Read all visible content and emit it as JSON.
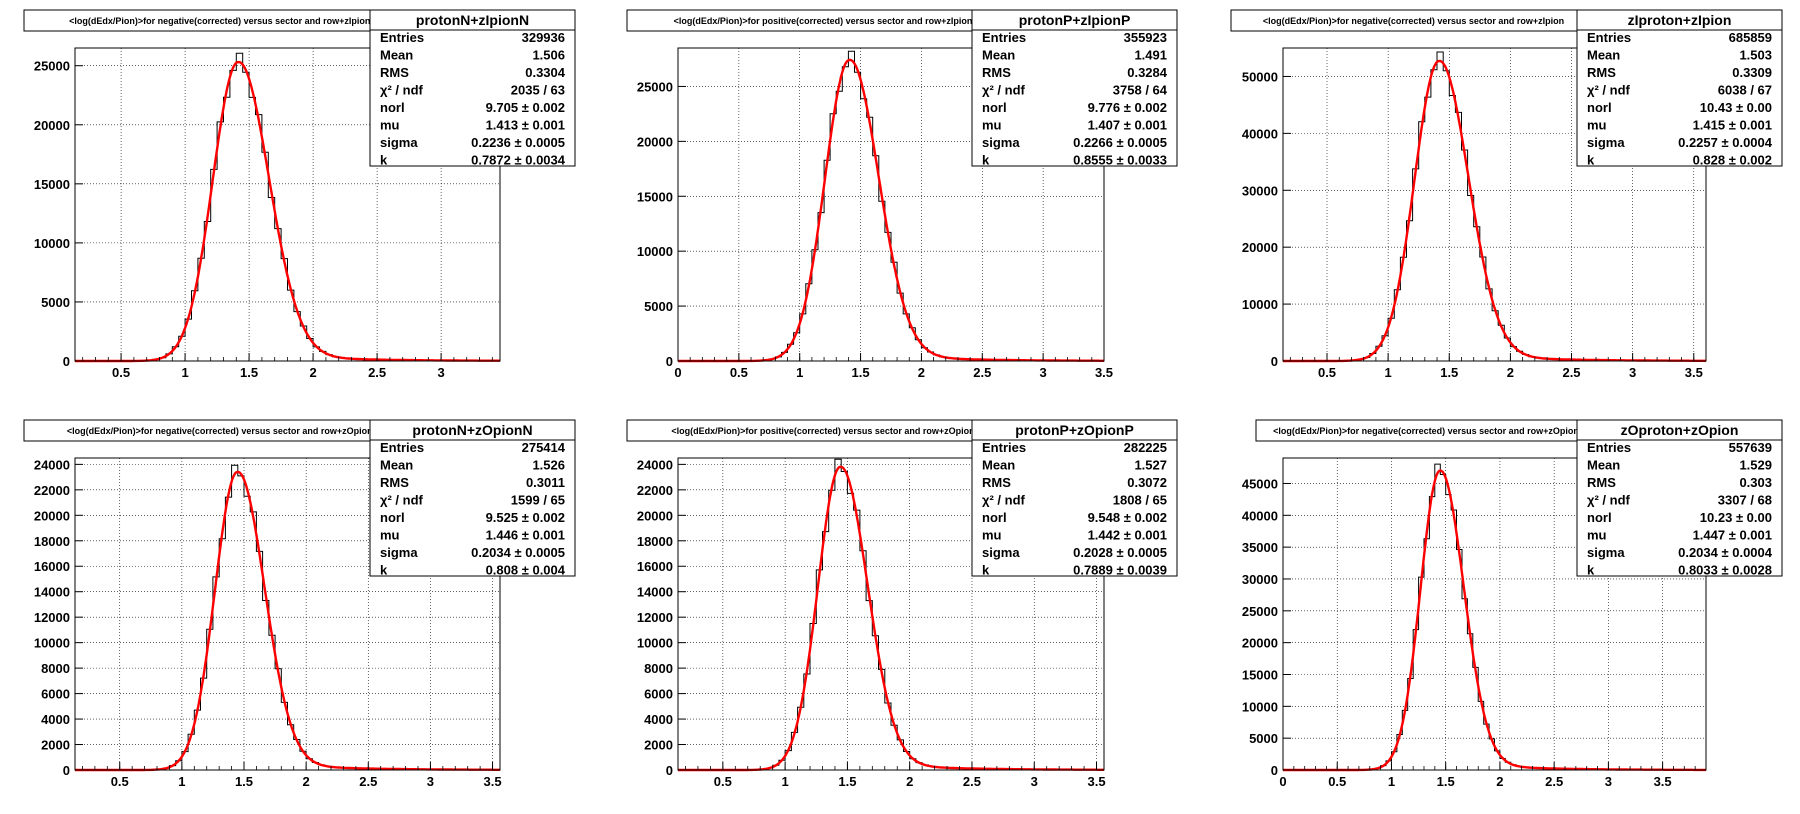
{
  "chart_data": [
    {
      "type": "histogram",
      "title": "<log(dEdx/Pion)>for negative(corrected) versus sector and row+zIpionN",
      "stats_name": "protonN+zIpionN",
      "xlim": [
        0.14,
        3.46
      ],
      "ylim": [
        0,
        26500
      ],
      "xticks": [
        0.5,
        1,
        1.5,
        2,
        2.5,
        3
      ],
      "xtick_labels": [
        "0.5",
        "1",
        "1.5",
        "2",
        "2.5",
        "3"
      ],
      "yticks": [
        0,
        5000,
        10000,
        15000,
        20000,
        25000
      ],
      "ytick_labels": [
        "0",
        "5000",
        "10000",
        "15000",
        "20000",
        "25000"
      ],
      "stats": [
        {
          "label": "Entries",
          "value": "329936"
        },
        {
          "label": "Mean",
          "value": "1.506"
        },
        {
          "label": "RMS",
          "value": "0.3304"
        },
        {
          "label": "χ² / ndf",
          "value": "2035 / 63"
        },
        {
          "label": "norl",
          "value": "9.705 ± 0.002"
        },
        {
          "label": "mu",
          "value": "1.413 ± 0.001"
        },
        {
          "label": "sigma",
          "value": "0.2236 ± 0.0005"
        },
        {
          "label": "k",
          "value": "0.7872 ± 0.0034"
        }
      ],
      "fit": {
        "peak": 25300,
        "mu": 1.413,
        "sigma": 0.2236,
        "k": 0.7872
      }
    },
    {
      "type": "histogram",
      "title": "<log(dEdx/Pion)>for positive(corrected) versus sector and row+zIpionP",
      "stats_name": "protonP+zIpionP",
      "xlim": [
        0,
        3.5
      ],
      "ylim": [
        0,
        28500
      ],
      "xticks": [
        0,
        0.5,
        1,
        1.5,
        2,
        2.5,
        3,
        3.5
      ],
      "xtick_labels": [
        "0",
        "0.5",
        "1",
        "1.5",
        "2",
        "2.5",
        "3",
        "3.5"
      ],
      "yticks": [
        0,
        5000,
        10000,
        15000,
        20000,
        25000
      ],
      "ytick_labels": [
        "0",
        "5000",
        "10000",
        "15000",
        "20000",
        "25000"
      ],
      "stats": [
        {
          "label": "Entries",
          "value": "355923"
        },
        {
          "label": "Mean",
          "value": "1.491"
        },
        {
          "label": "RMS",
          "value": "0.3284"
        },
        {
          "label": "χ² / ndf",
          "value": "3758 / 64"
        },
        {
          "label": "norl",
          "value": "9.776 ± 0.002"
        },
        {
          "label": "mu",
          "value": "1.407 ± 0.001"
        },
        {
          "label": "sigma",
          "value": "0.2266 ± 0.0005"
        },
        {
          "label": "k",
          "value": "0.8555 ± 0.0033"
        }
      ],
      "fit": {
        "peak": 27400,
        "mu": 1.407,
        "sigma": 0.2266,
        "k": 0.8555
      }
    },
    {
      "type": "histogram",
      "title": "<log(dEdx/Pion)>for negative(corrected) versus sector and row+zIpion",
      "stats_name": "zIproton+zIpion",
      "xlim": [
        0.14,
        3.6
      ],
      "ylim": [
        0,
        55000
      ],
      "xticks": [
        0.5,
        1,
        1.5,
        2,
        2.5,
        3,
        3.5
      ],
      "xtick_labels": [
        "0.5",
        "1",
        "1.5",
        "2",
        "2.5",
        "3",
        "3.5"
      ],
      "yticks": [
        0,
        10000,
        20000,
        30000,
        40000,
        50000
      ],
      "ytick_labels": [
        "0",
        "10000",
        "20000",
        "30000",
        "40000",
        "50000"
      ],
      "stats": [
        {
          "label": "Entries",
          "value": "685859"
        },
        {
          "label": "Mean",
          "value": "1.503"
        },
        {
          "label": "RMS",
          "value": "0.3309"
        },
        {
          "label": "χ² / ndf",
          "value": "6038 / 67"
        },
        {
          "label": "norl",
          "value": "10.43 ± 0.00"
        },
        {
          "label": "mu",
          "value": "1.415 ± 0.001"
        },
        {
          "label": "sigma",
          "value": "0.2257 ± 0.0004"
        },
        {
          "label": "k",
          "value": "0.828 ± 0.002"
        }
      ],
      "fit": {
        "peak": 52700,
        "mu": 1.415,
        "sigma": 0.2257,
        "k": 0.828
      }
    },
    {
      "type": "histogram",
      "title": "<log(dEdx/Pion)>for negative(corrected) versus sector and row+zOpionN",
      "stats_name": "protonN+zOpionN",
      "xlim": [
        0.14,
        3.56
      ],
      "ylim": [
        0,
        24500
      ],
      "xticks": [
        0.5,
        1,
        1.5,
        2,
        2.5,
        3,
        3.5
      ],
      "xtick_labels": [
        "0.5",
        "1",
        "1.5",
        "2",
        "2.5",
        "3",
        "3.5"
      ],
      "yticks": [
        0,
        2000,
        4000,
        6000,
        8000,
        10000,
        12000,
        14000,
        16000,
        18000,
        20000,
        22000,
        24000
      ],
      "ytick_labels": [
        "0",
        "2000",
        "4000",
        "6000",
        "8000",
        "10000",
        "12000",
        "14000",
        "16000",
        "18000",
        "20000",
        "22000",
        "24000"
      ],
      "stats": [
        {
          "label": "Entries",
          "value": "275414"
        },
        {
          "label": "Mean",
          "value": "1.526"
        },
        {
          "label": "RMS",
          "value": "0.3011"
        },
        {
          "label": "χ² / ndf",
          "value": "1599 / 65"
        },
        {
          "label": "norl",
          "value": "9.525 ± 0.002"
        },
        {
          "label": "mu",
          "value": "1.446 ± 0.001"
        },
        {
          "label": "sigma",
          "value": "0.2034 ± 0.0005"
        },
        {
          "label": "k",
          "value": "0.808 ± 0.004"
        }
      ],
      "fit": {
        "peak": 23400,
        "mu": 1.446,
        "sigma": 0.2034,
        "k": 0.808
      }
    },
    {
      "type": "histogram",
      "title": "<log(dEdx/Pion)>for positive(corrected) versus sector and row+zOpionP",
      "stats_name": "protonP+zOpionP",
      "xlim": [
        0.14,
        3.56
      ],
      "ylim": [
        0,
        24500
      ],
      "xticks": [
        0.5,
        1,
        1.5,
        2,
        2.5,
        3,
        3.5
      ],
      "xtick_labels": [
        "0.5",
        "1",
        "1.5",
        "2",
        "2.5",
        "3",
        "3.5"
      ],
      "yticks": [
        0,
        2000,
        4000,
        6000,
        8000,
        10000,
        12000,
        14000,
        16000,
        18000,
        20000,
        22000,
        24000
      ],
      "ytick_labels": [
        "0",
        "2000",
        "4000",
        "6000",
        "8000",
        "10000",
        "12000",
        "14000",
        "16000",
        "18000",
        "20000",
        "22000",
        "24000"
      ],
      "stats": [
        {
          "label": "Entries",
          "value": "282225"
        },
        {
          "label": "Mean",
          "value": "1.527"
        },
        {
          "label": "RMS",
          "value": "0.3072"
        },
        {
          "label": "χ² / ndf",
          "value": "1808 / 65"
        },
        {
          "label": "norl",
          "value": "9.548 ± 0.002"
        },
        {
          "label": "mu",
          "value": "1.442 ± 0.001"
        },
        {
          "label": "sigma",
          "value": "0.2028 ± 0.0005"
        },
        {
          "label": "k",
          "value": "0.7889 ± 0.0039"
        }
      ],
      "fit": {
        "peak": 23800,
        "mu": 1.442,
        "sigma": 0.2028,
        "k": 0.7889
      }
    },
    {
      "type": "histogram",
      "title": "<log(dEdx/Pion)>for negative(corrected) versus sector and row+zOpion",
      "stats_name": "zOproton+zOpion",
      "xlim": [
        0,
        3.9
      ],
      "ylim": [
        0,
        49000
      ],
      "xticks": [
        0,
        0.5,
        1,
        1.5,
        2,
        2.5,
        3,
        3.5
      ],
      "xtick_labels": [
        "0",
        "0.5",
        "1",
        "1.5",
        "2",
        "2.5",
        "3",
        "3.5"
      ],
      "yticks": [
        0,
        5000,
        10000,
        15000,
        20000,
        25000,
        30000,
        35000,
        40000,
        45000
      ],
      "ytick_labels": [
        "0",
        "5000",
        "10000",
        "15000",
        "20000",
        "25000",
        "30000",
        "35000",
        "40000",
        "45000"
      ],
      "stats": [
        {
          "label": "Entries",
          "value": "557639"
        },
        {
          "label": "Mean",
          "value": "1.529"
        },
        {
          "label": "RMS",
          "value": "0.303"
        },
        {
          "label": "χ² / ndf",
          "value": "3307 / 68"
        },
        {
          "label": "norl",
          "value": "10.23 ± 0.00"
        },
        {
          "label": "mu",
          "value": "1.447 ± 0.001"
        },
        {
          "label": "sigma",
          "value": "0.2034 ± 0.0004"
        },
        {
          "label": "k",
          "value": "0.8033 ± 0.0028"
        }
      ],
      "fit": {
        "peak": 47000,
        "mu": 1.447,
        "sigma": 0.2034,
        "k": 0.8033
      }
    }
  ],
  "colors": {
    "histogram": "#000000",
    "fit": "#ff0000",
    "grid": "#000000",
    "frame": "#000000"
  }
}
